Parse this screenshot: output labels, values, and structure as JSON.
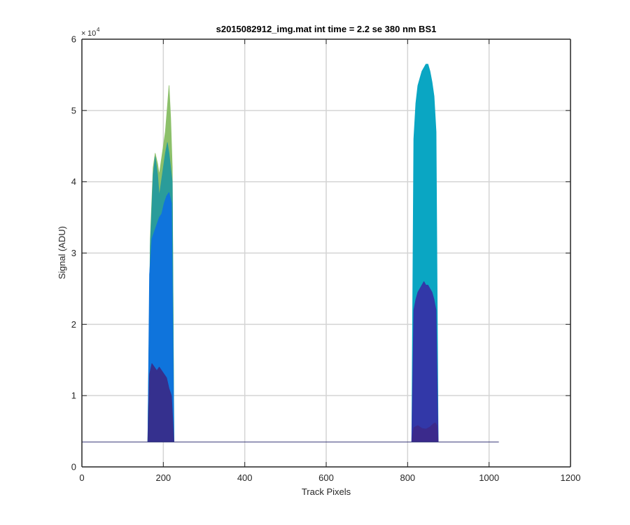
{
  "chart_data": {
    "type": "area",
    "title": "s2015082912_img.mat int time = 2.2 se  380 nm BS1",
    "xlabel": "Track Pixels",
    "ylabel": "Signal (ADU)",
    "xlim": [
      0,
      1200
    ],
    "ylim": [
      0,
      60000
    ],
    "x_ticks": [
      0,
      200,
      400,
      600,
      800,
      1000,
      1200
    ],
    "x_tick_labels": [
      "0",
      "200",
      "400",
      "600",
      "800",
      "1000",
      "1200"
    ],
    "y_ticks": [
      0,
      10000,
      20000,
      30000,
      40000,
      50000,
      60000
    ],
    "y_tick_labels": [
      "0",
      "1",
      "2",
      "3",
      "4",
      "5",
      "6"
    ],
    "y_exponent_base": "10",
    "y_exponent_power": "4",
    "grid": true,
    "baseline": 3500,
    "baseline_x_range": [
      0,
      1024
    ],
    "baseline_color": "#3a3a7a",
    "series": [
      {
        "color": "#8cc06a",
        "x": [
          162,
          168,
          175,
          180,
          186,
          190,
          195,
          200,
          205,
          210,
          214,
          218,
          222,
          226
        ],
        "values": [
          3500,
          32000,
          42000,
          44000,
          42500,
          41000,
          43000,
          45000,
          47000,
          50500,
          53500,
          49000,
          42000,
          3500
        ]
      },
      {
        "color": "#2a9c9a",
        "x": [
          162,
          168,
          175,
          180,
          186,
          190,
          195,
          200,
          205,
          210,
          214,
          218,
          222,
          226
        ],
        "values": [
          3500,
          31000,
          41000,
          43500,
          41000,
          38000,
          40000,
          42000,
          44000,
          45500,
          44000,
          42000,
          40000,
          3500
        ]
      },
      {
        "color": "#0f74dc",
        "x": [
          162,
          166,
          172,
          178,
          184,
          190,
          196,
          202,
          208,
          214,
          220,
          226
        ],
        "values": [
          3500,
          27000,
          32000,
          33000,
          34000,
          35000,
          35500,
          37000,
          38000,
          38500,
          37000,
          3500
        ]
      },
      {
        "color": "#35308e",
        "x": [
          162,
          166,
          172,
          178,
          184,
          190,
          196,
          202,
          208,
          214,
          220,
          226
        ],
        "values": [
          3500,
          13000,
          14500,
          14000,
          13500,
          14000,
          13500,
          13000,
          12500,
          11000,
          10000,
          3500
        ]
      },
      {
        "color": "#0aa6c3",
        "x": [
          810,
          815,
          820,
          825,
          830,
          835,
          840,
          845,
          850,
          855,
          860,
          865,
          870,
          875
        ],
        "values": [
          3500,
          46000,
          51000,
          53500,
          54500,
          55500,
          56000,
          56500,
          56500,
          55500,
          54000,
          52000,
          47000,
          3500
        ]
      },
      {
        "color": "#3238a8",
        "x": [
          810,
          815,
          820,
          825,
          830,
          835,
          840,
          845,
          850,
          855,
          860,
          865,
          870,
          875
        ],
        "values": [
          3500,
          22000,
          23500,
          24500,
          25000,
          25500,
          26000,
          25500,
          25500,
          25000,
          24500,
          23500,
          22000,
          3500
        ]
      },
      {
        "color": "#3b2a8c",
        "x": [
          810,
          815,
          825,
          835,
          845,
          855,
          862,
          868,
          872,
          875
        ],
        "values": [
          3500,
          5500,
          5800,
          5400,
          5300,
          5600,
          6000,
          6200,
          5800,
          3500
        ]
      }
    ]
  }
}
